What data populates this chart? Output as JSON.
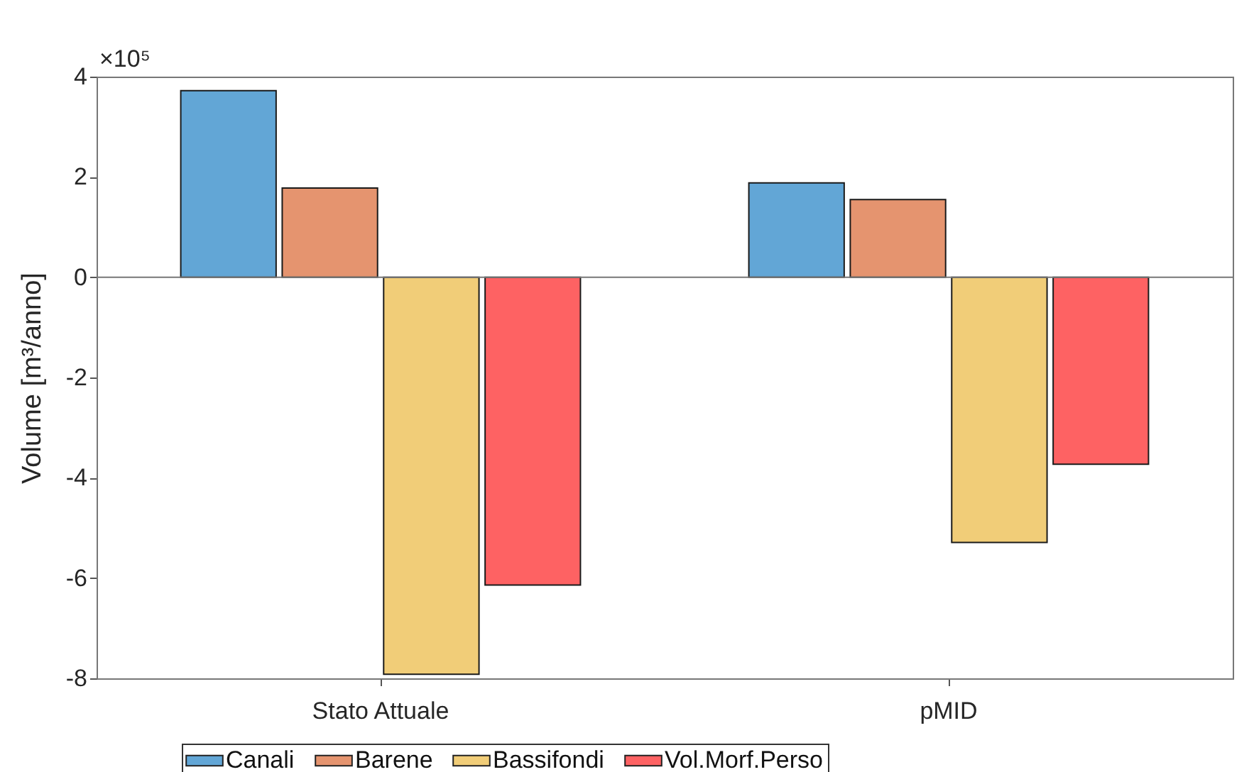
{
  "chart_data": {
    "type": "bar",
    "ylabel": "Volume [m³/anno]",
    "categories": [
      "Stato Attuale",
      "pMID"
    ],
    "series": [
      {
        "name": "Canali",
        "color": "#62a6d6",
        "values": [
          3.72,
          1.88
        ]
      },
      {
        "name": "Barene",
        "color": "#e5946f",
        "values": [
          1.78,
          1.55
        ]
      },
      {
        "name": "Bassifondi",
        "color": "#f1cd78",
        "values": [
          -7.92,
          -5.29
        ]
      },
      {
        "name": "Vol.Morf.Perso",
        "color": "#fe6263",
        "values": [
          -6.14,
          -3.73
        ]
      }
    ],
    "ylim": [
      -8,
      4
    ],
    "yticks": [
      -8,
      -6,
      -4,
      -2,
      0,
      2,
      4
    ],
    "ref_lines": [
      {
        "axis": "y",
        "value": 0
      }
    ],
    "annotations": [
      "×10⁵"
    ],
    "legend": "bottom",
    "grid": false
  }
}
